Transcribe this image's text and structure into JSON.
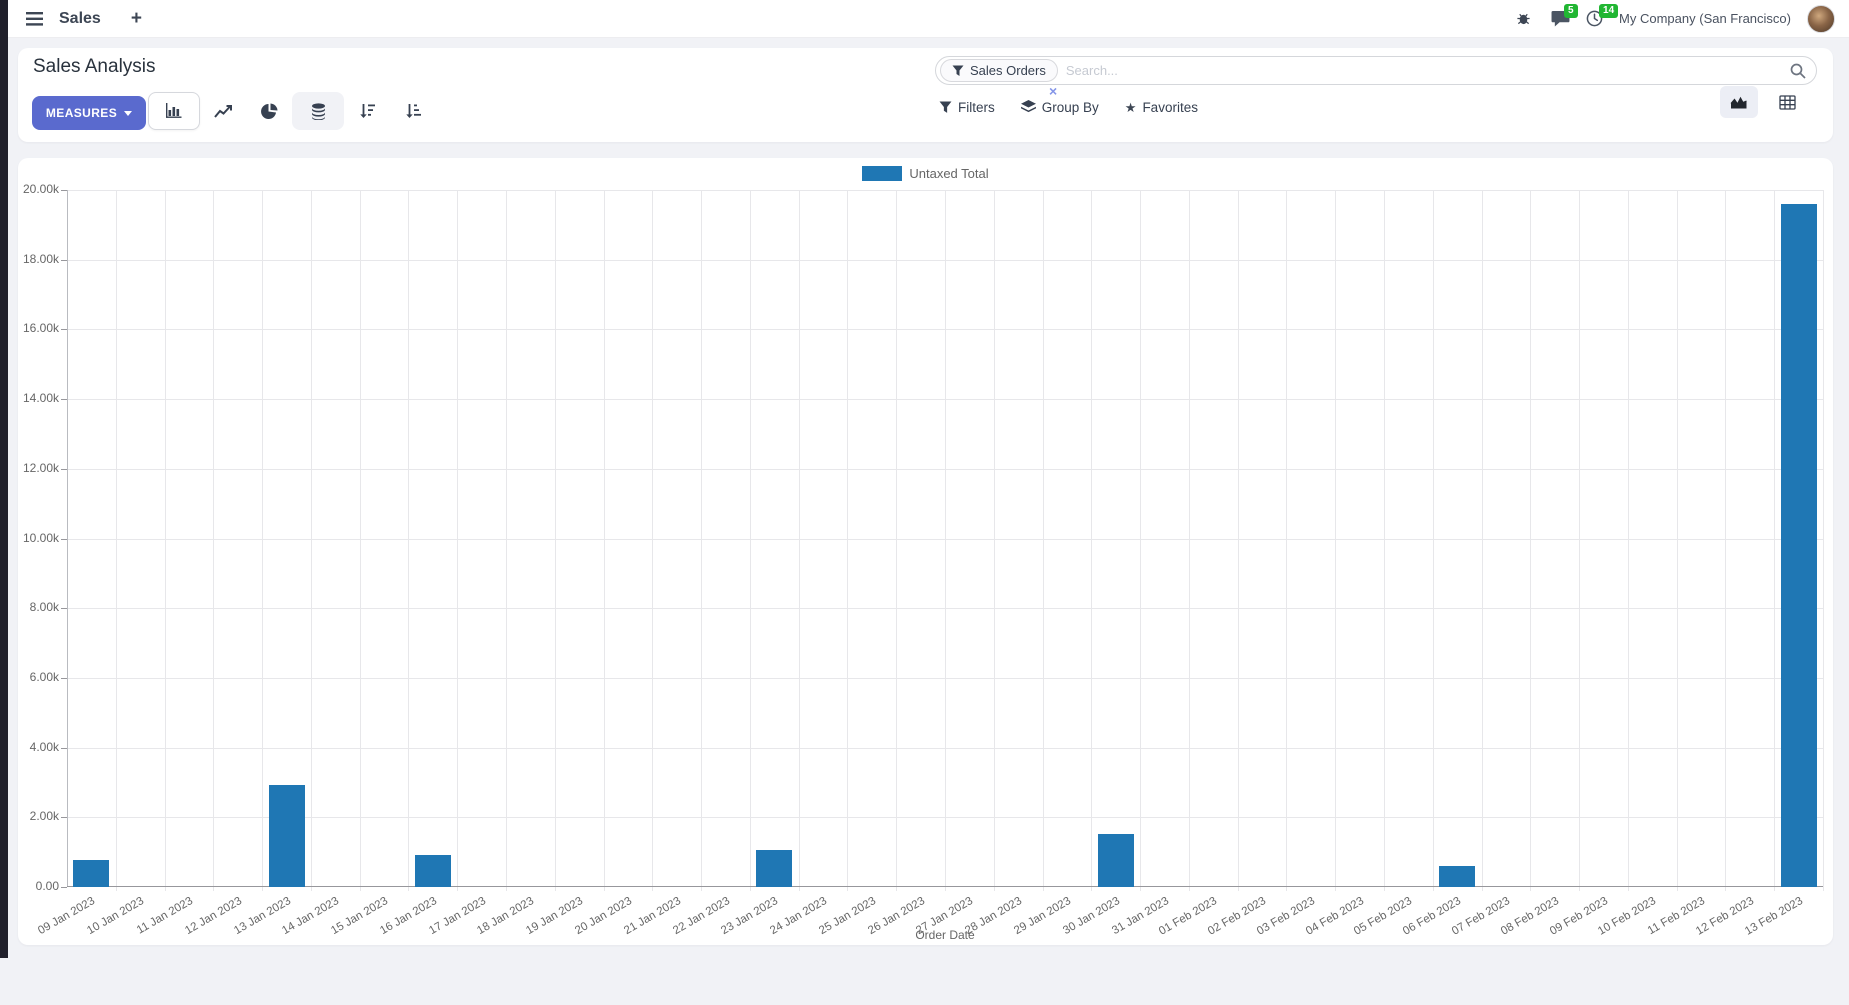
{
  "navbar": {
    "app_menu_label": "Sales",
    "plus_label": "+",
    "messages_badge": "5",
    "activities_badge": "14",
    "company": "My Company (San Francisco)"
  },
  "control_panel": {
    "title": "Sales Analysis",
    "measures_label": "MEASURES",
    "search": {
      "facet": "Sales Orders",
      "placeholder": "Search...",
      "remove_icon": "×"
    },
    "filters_label": "Filters",
    "group_by_label": "Group By",
    "favorites_label": "Favorites"
  },
  "colors": {
    "accent": "#5a6ace",
    "bar": "#1f77b4",
    "badge_green": "#21b632"
  },
  "chart_data": {
    "type": "bar",
    "title": "",
    "xlabel": "Order Date",
    "ylabel": "",
    "legend": [
      {
        "name": "Untaxed Total",
        "color": "#1f77b4"
      }
    ],
    "legend_position": "top",
    "grid": true,
    "ylim": [
      0,
      20000
    ],
    "ytick_labels": [
      "0.00",
      "2.00k",
      "4.00k",
      "6.00k",
      "8.00k",
      "10.00k",
      "12.00k",
      "14.00k",
      "16.00k",
      "18.00k",
      "20.00k"
    ],
    "categories": [
      "09 Jan 2023",
      "10 Jan 2023",
      "11 Jan 2023",
      "12 Jan 2023",
      "13 Jan 2023",
      "14 Jan 2023",
      "15 Jan 2023",
      "16 Jan 2023",
      "17 Jan 2023",
      "18 Jan 2023",
      "19 Jan 2023",
      "20 Jan 2023",
      "21 Jan 2023",
      "22 Jan 2023",
      "23 Jan 2023",
      "24 Jan 2023",
      "25 Jan 2023",
      "26 Jan 2023",
      "27 Jan 2023",
      "28 Jan 2023",
      "29 Jan 2023",
      "30 Jan 2023",
      "31 Jan 2023",
      "01 Feb 2023",
      "02 Feb 2023",
      "03 Feb 2023",
      "04 Feb 2023",
      "05 Feb 2023",
      "06 Feb 2023",
      "07 Feb 2023",
      "08 Feb 2023",
      "09 Feb 2023",
      "10 Feb 2023",
      "11 Feb 2023",
      "12 Feb 2023",
      "13 Feb 2023"
    ],
    "values": [
      775,
      0,
      0,
      0,
      2930,
      0,
      0,
      920,
      0,
      0,
      0,
      0,
      0,
      0,
      1060,
      0,
      0,
      0,
      0,
      0,
      0,
      1520,
      0,
      0,
      0,
      0,
      0,
      0,
      600,
      0,
      0,
      0,
      0,
      0,
      0,
      19600
    ]
  }
}
